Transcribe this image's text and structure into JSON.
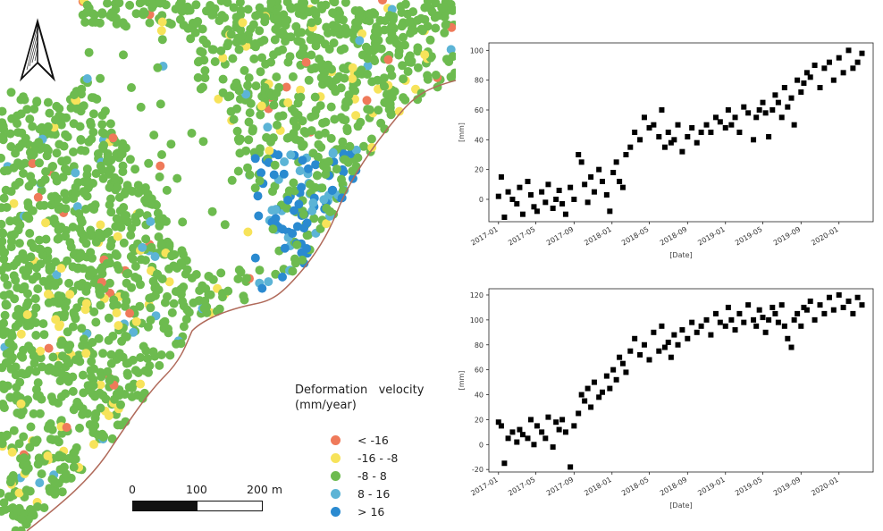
{
  "map": {
    "legend": {
      "title_line1": "Deformation   velocity",
      "title_line2": "(mm/year)",
      "classes": [
        {
          "label": "< -16",
          "color": "#ef7a5a"
        },
        {
          "label": "-16 - -8",
          "color": "#f7e35a"
        },
        {
          "label": "-8 - 8",
          "color": "#6dbb4f"
        },
        {
          "label": "8 - 16",
          "color": "#5cb4d6"
        },
        {
          "label": "> 16",
          "color": "#2a8ad0"
        }
      ]
    },
    "scale_bar": {
      "labels": [
        "0",
        "100",
        "200 m"
      ]
    },
    "north_arrow": "north-arrow-icon",
    "coastline_color": "#b06a5a"
  },
  "chart_data": [
    {
      "type": "scatter",
      "xlabel": "[Date]",
      "ylabel": "[mm]",
      "xlim": [
        "2016-12-01",
        "2020-04-20"
      ],
      "ylim": [
        -15,
        105
      ],
      "yticks": [
        0,
        20,
        40,
        60,
        80,
        100
      ],
      "xticks": [
        "2017-01",
        "2017-05",
        "2017-09",
        "2018-01",
        "2018-05",
        "2018-09",
        "2019-01",
        "2019-05",
        "2019-09",
        "2020-01"
      ],
      "marker": "square",
      "color": "#000000",
      "x": [
        "2017-01-01",
        "2017-01-10",
        "2017-01-20",
        "2017-02-01",
        "2017-02-15",
        "2017-03-01",
        "2017-03-10",
        "2017-03-20",
        "2017-04-05",
        "2017-04-15",
        "2017-04-25",
        "2017-05-05",
        "2017-05-20",
        "2017-06-01",
        "2017-06-10",
        "2017-06-25",
        "2017-07-05",
        "2017-07-15",
        "2017-07-25",
        "2017-08-05",
        "2017-08-20",
        "2017-09-01",
        "2017-09-15",
        "2017-09-25",
        "2017-10-05",
        "2017-10-15",
        "2017-10-25",
        "2017-11-05",
        "2017-11-20",
        "2017-12-01",
        "2017-12-15",
        "2017-12-25",
        "2018-01-05",
        "2018-01-15",
        "2018-01-25",
        "2018-02-05",
        "2018-02-15",
        "2018-03-01",
        "2018-03-15",
        "2018-04-01",
        "2018-04-15",
        "2018-05-01",
        "2018-05-15",
        "2018-06-01",
        "2018-06-10",
        "2018-06-20",
        "2018-07-01",
        "2018-07-10",
        "2018-07-20",
        "2018-08-01",
        "2018-08-15",
        "2018-09-01",
        "2018-09-15",
        "2018-10-01",
        "2018-10-15",
        "2018-11-01",
        "2018-11-15",
        "2018-12-01",
        "2018-12-15",
        "2019-01-01",
        "2019-01-10",
        "2019-01-20",
        "2019-02-01",
        "2019-02-15",
        "2019-03-01",
        "2019-03-15",
        "2019-04-01",
        "2019-04-10",
        "2019-04-20",
        "2019-05-01",
        "2019-05-10",
        "2019-05-20",
        "2019-06-01",
        "2019-06-10",
        "2019-06-20",
        "2019-07-01",
        "2019-07-10",
        "2019-07-20",
        "2019-08-01",
        "2019-08-10",
        "2019-08-20",
        "2019-09-01",
        "2019-09-10",
        "2019-09-20",
        "2019-10-01",
        "2019-10-15",
        "2019-11-01",
        "2019-11-15",
        "2019-12-01",
        "2019-12-15",
        "2020-01-01",
        "2020-01-15",
        "2020-02-01",
        "2020-02-15",
        "2020-03-01",
        "2020-03-15"
      ],
      "y": [
        2,
        15,
        -12,
        5,
        0,
        -3,
        8,
        -10,
        12,
        3,
        -5,
        -8,
        5,
        -2,
        10,
        -6,
        0,
        6,
        -3,
        -10,
        8,
        0,
        30,
        25,
        10,
        -2,
        15,
        5,
        20,
        12,
        3,
        -8,
        18,
        25,
        12,
        8,
        30,
        35,
        45,
        40,
        55,
        48,
        50,
        42,
        60,
        35,
        45,
        38,
        40,
        50,
        32,
        42,
        48,
        38,
        45,
        50,
        45,
        55,
        52,
        48,
        60,
        50,
        55,
        45,
        62,
        58,
        40,
        55,
        60,
        65,
        58,
        42,
        60,
        70,
        65,
        55,
        75,
        62,
        68,
        50,
        80,
        72,
        78,
        85,
        82,
        90,
        75,
        88,
        92,
        80,
        95,
        85,
        100,
        88,
        92,
        98
      ]
    },
    {
      "type": "scatter",
      "xlabel": "[Date]",
      "ylabel": "[mm]",
      "xlim": [
        "2016-12-01",
        "2020-04-20"
      ],
      "ylim": [
        -22,
        125
      ],
      "yticks": [
        -20,
        0,
        20,
        40,
        60,
        80,
        100,
        120
      ],
      "xticks": [
        "2017-01",
        "2017-05",
        "2017-09",
        "2018-01",
        "2018-05",
        "2018-09",
        "2019-01",
        "2019-05",
        "2019-09",
        "2020-01"
      ],
      "marker": "square",
      "color": "#000000",
      "x": [
        "2017-01-01",
        "2017-01-10",
        "2017-01-20",
        "2017-02-01",
        "2017-02-15",
        "2017-03-01",
        "2017-03-10",
        "2017-03-20",
        "2017-04-05",
        "2017-04-15",
        "2017-04-25",
        "2017-05-05",
        "2017-05-20",
        "2017-06-01",
        "2017-06-10",
        "2017-06-25",
        "2017-07-05",
        "2017-07-15",
        "2017-07-25",
        "2017-08-05",
        "2017-08-20",
        "2017-09-01",
        "2017-09-15",
        "2017-09-25",
        "2017-10-05",
        "2017-10-15",
        "2017-10-25",
        "2017-11-05",
        "2017-11-20",
        "2017-12-01",
        "2017-12-15",
        "2017-12-25",
        "2018-01-05",
        "2018-01-15",
        "2018-01-25",
        "2018-02-05",
        "2018-02-15",
        "2018-03-01",
        "2018-03-15",
        "2018-04-01",
        "2018-04-15",
        "2018-05-01",
        "2018-05-15",
        "2018-06-01",
        "2018-06-10",
        "2018-06-20",
        "2018-07-01",
        "2018-07-10",
        "2018-07-20",
        "2018-08-01",
        "2018-08-15",
        "2018-09-01",
        "2018-09-15",
        "2018-10-01",
        "2018-10-15",
        "2018-11-01",
        "2018-11-15",
        "2018-12-01",
        "2018-12-15",
        "2019-01-01",
        "2019-01-10",
        "2019-01-20",
        "2019-02-01",
        "2019-02-15",
        "2019-03-01",
        "2019-03-15",
        "2019-04-01",
        "2019-04-10",
        "2019-04-20",
        "2019-05-01",
        "2019-05-10",
        "2019-05-20",
        "2019-06-01",
        "2019-06-10",
        "2019-06-20",
        "2019-07-01",
        "2019-07-10",
        "2019-07-20",
        "2019-08-01",
        "2019-08-10",
        "2019-08-20",
        "2019-09-01",
        "2019-09-10",
        "2019-09-20",
        "2019-10-01",
        "2019-10-15",
        "2019-11-01",
        "2019-11-15",
        "2019-12-01",
        "2019-12-15",
        "2020-01-01",
        "2020-01-15",
        "2020-02-01",
        "2020-02-15",
        "2020-03-01",
        "2020-03-15"
      ],
      "y": [
        18,
        15,
        -15,
        5,
        10,
        2,
        12,
        8,
        5,
        20,
        0,
        15,
        10,
        5,
        22,
        -2,
        18,
        12,
        20,
        10,
        -18,
        15,
        25,
        40,
        35,
        45,
        30,
        50,
        38,
        42,
        55,
        45,
        60,
        52,
        70,
        65,
        58,
        75,
        85,
        72,
        80,
        68,
        90,
        75,
        95,
        78,
        82,
        70,
        88,
        80,
        92,
        85,
        98,
        90,
        95,
        100,
        88,
        105,
        98,
        95,
        110,
        100,
        92,
        105,
        98,
        112,
        100,
        95,
        108,
        102,
        90,
        100,
        110,
        105,
        98,
        112,
        95,
        85,
        78,
        100,
        105,
        95,
        110,
        108,
        115,
        100,
        112,
        105,
        118,
        108,
        120,
        110,
        115,
        105,
        118,
        112
      ]
    }
  ]
}
